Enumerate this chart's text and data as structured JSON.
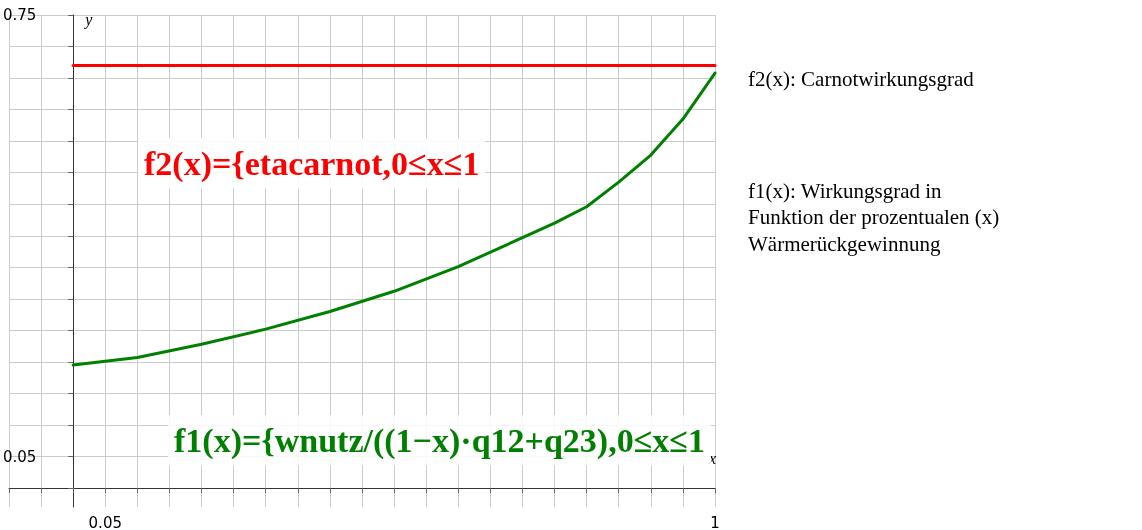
{
  "chart_data": {
    "type": "line",
    "xlabel": "x",
    "ylabel": "y",
    "xlim": [
      -0.1,
      1
    ],
    "ylim": [
      -0.03,
      0.75
    ],
    "xticks": [
      {
        "value": -0.1,
        "label": null
      },
      {
        "value": -0.05,
        "label": null
      },
      {
        "value": 0,
        "label": null
      },
      {
        "value": 0.05,
        "label": "0.05"
      },
      {
        "value": 0.1,
        "label": null
      },
      {
        "value": 0.15,
        "label": null
      },
      {
        "value": 0.2,
        "label": null
      },
      {
        "value": 0.25,
        "label": null
      },
      {
        "value": 0.3,
        "label": null
      },
      {
        "value": 0.35,
        "label": null
      },
      {
        "value": 0.4,
        "label": null
      },
      {
        "value": 0.45,
        "label": null
      },
      {
        "value": 0.5,
        "label": null
      },
      {
        "value": 0.55,
        "label": null
      },
      {
        "value": 0.6,
        "label": null
      },
      {
        "value": 0.65,
        "label": null
      },
      {
        "value": 0.7,
        "label": null
      },
      {
        "value": 0.75,
        "label": null
      },
      {
        "value": 0.8,
        "label": null
      },
      {
        "value": 0.85,
        "label": null
      },
      {
        "value": 0.9,
        "label": null
      },
      {
        "value": 0.95,
        "label": null
      },
      {
        "value": 1,
        "label": "1"
      }
    ],
    "yticks": [
      {
        "value": 0,
        "label": null
      },
      {
        "value": 0.05,
        "label": "0.05"
      },
      {
        "value": 0.1,
        "label": null
      },
      {
        "value": 0.15,
        "label": null
      },
      {
        "value": 0.2,
        "label": null
      },
      {
        "value": 0.25,
        "label": null
      },
      {
        "value": 0.3,
        "label": null
      },
      {
        "value": 0.35,
        "label": null
      },
      {
        "value": 0.4,
        "label": null
      },
      {
        "value": 0.45,
        "label": null
      },
      {
        "value": 0.5,
        "label": null
      },
      {
        "value": 0.55,
        "label": null
      },
      {
        "value": 0.6,
        "label": null
      },
      {
        "value": 0.65,
        "label": null
      },
      {
        "value": 0.7,
        "label": null
      },
      {
        "value": 0.75,
        "label": "0.75"
      }
    ],
    "grid": true,
    "marker": "none",
    "line_style": "solid",
    "series": [
      {
        "color": "#ff0000",
        "x": [
          0,
          1
        ],
        "values": [
          0.67,
          0.67
        ]
      },
      {
        "color": "#008000",
        "x": [
          0,
          0.1,
          0.2,
          0.3,
          0.4,
          0.5,
          0.6,
          0.7,
          0.75,
          0.8,
          0.85,
          0.9,
          0.95,
          1
        ],
        "values": [
          0.195,
          0.207,
          0.228,
          0.252,
          0.28,
          0.312,
          0.351,
          0.397,
          0.42,
          0.446,
          0.485,
          0.528,
          0.585,
          0.658
        ]
      }
    ],
    "annotations": [
      "f2(x)={etacarnot,0≤x≤1",
      "f1(x)={wnutz/((1−x)·q12+q23),0≤x≤1",
      "f2(x): Carnotwirkungsgrad",
      "f1(x): Wirkungsgrad in\nFunktion der prozentualen (x)\nWärmerückgewinnung"
    ]
  }
}
